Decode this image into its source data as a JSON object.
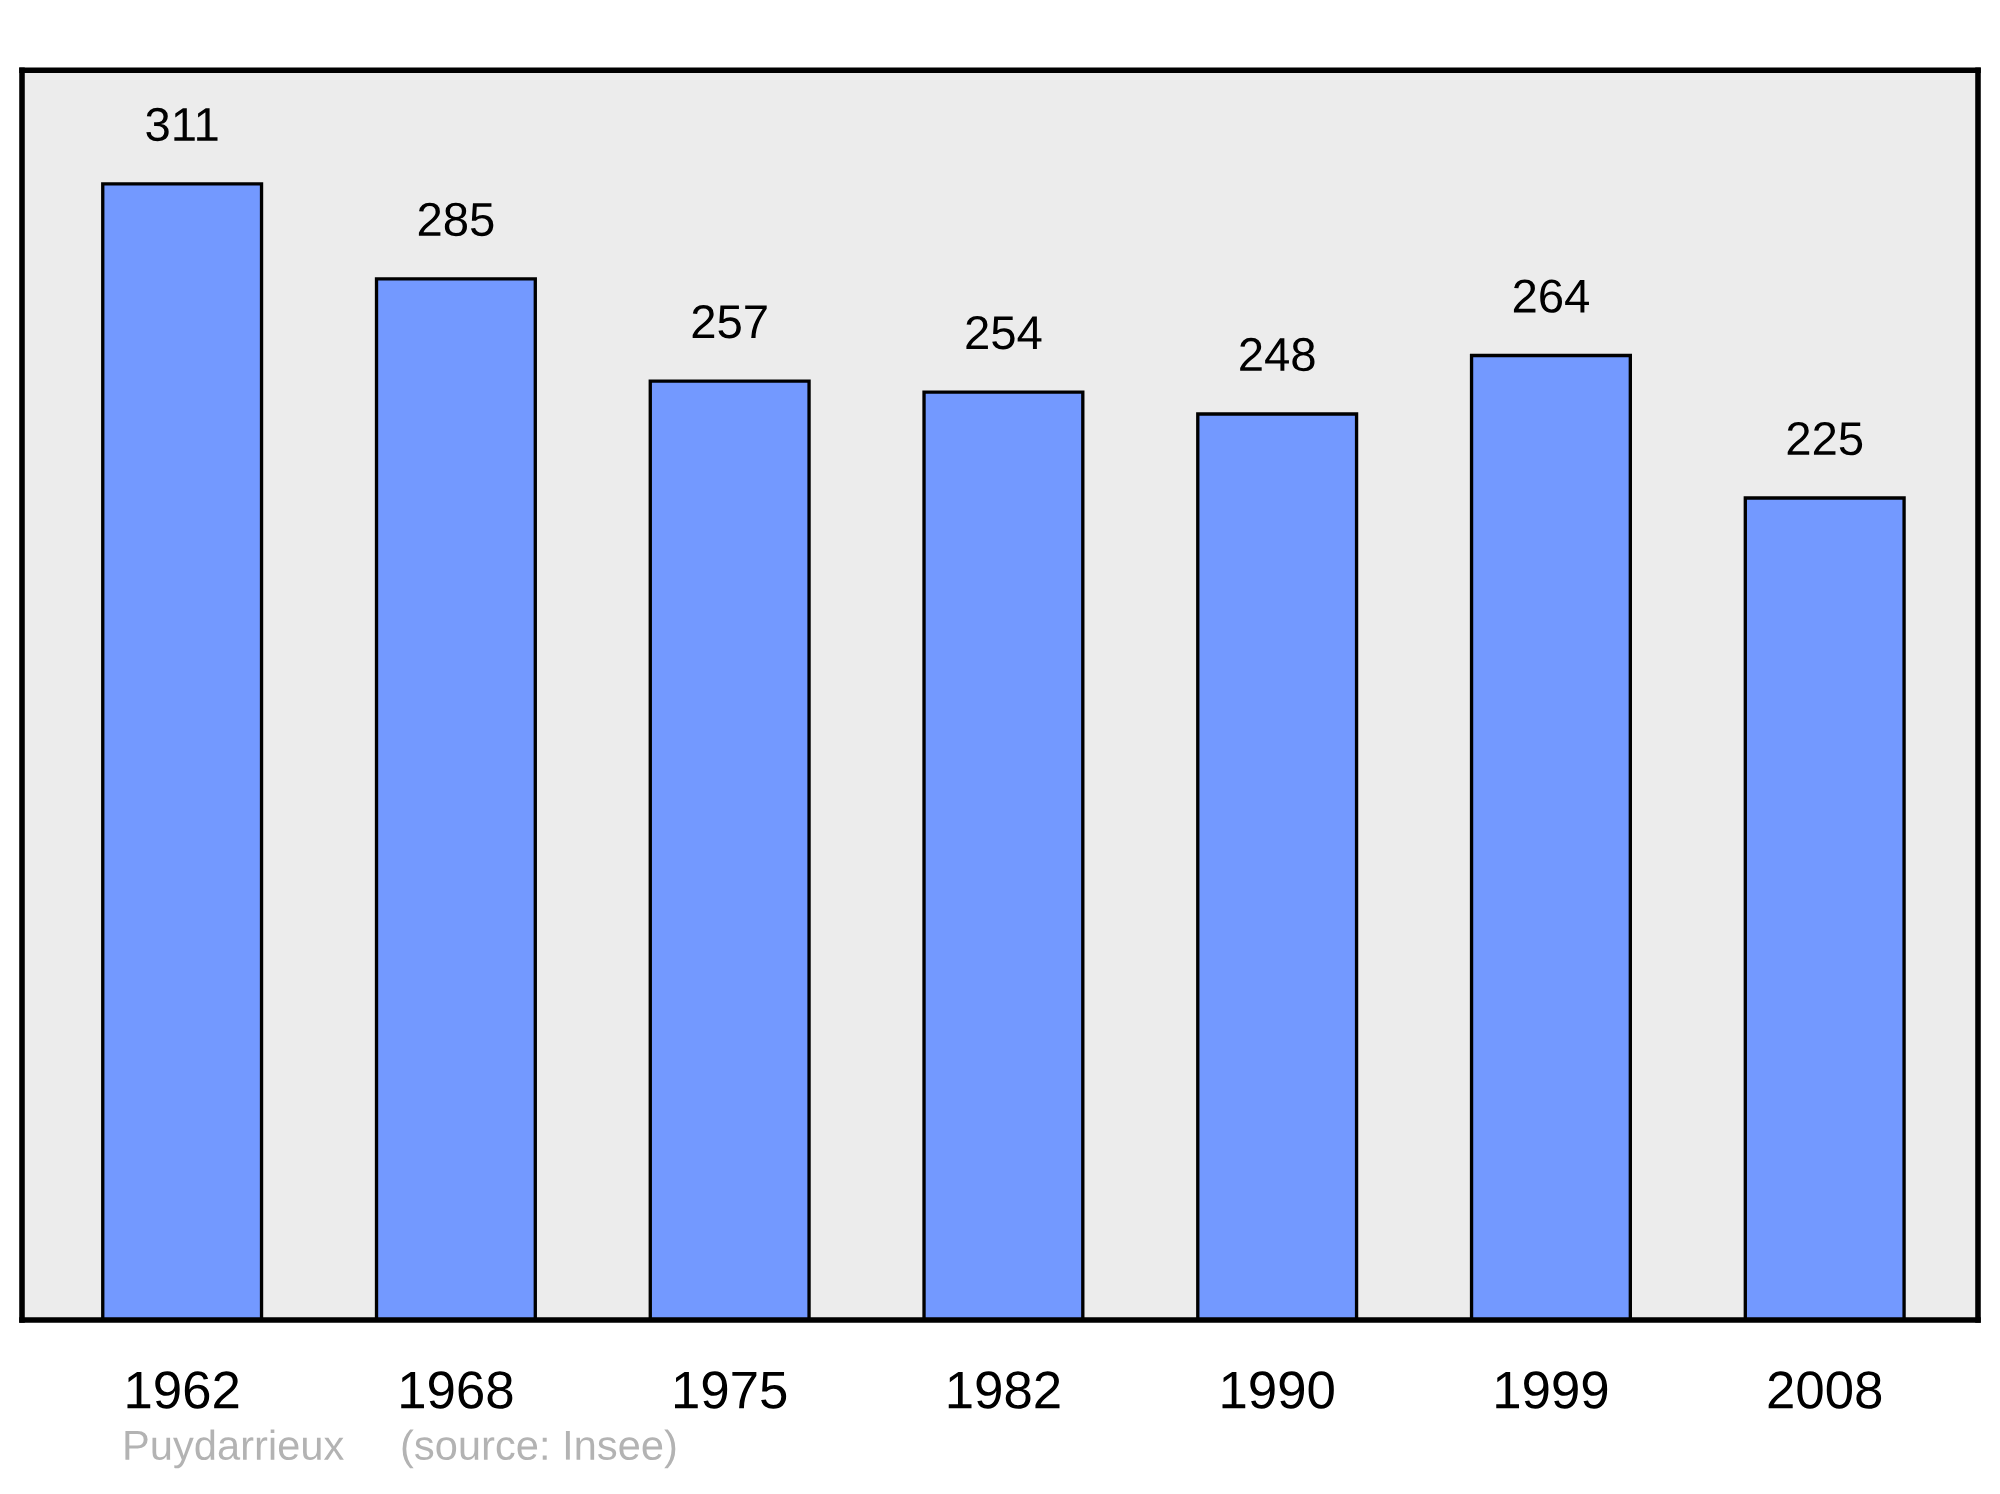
{
  "chart_data": {
    "type": "bar",
    "categories": [
      "1962",
      "1968",
      "1975",
      "1982",
      "1990",
      "1999",
      "2008"
    ],
    "values": [
      311,
      285,
      257,
      254,
      248,
      264,
      225
    ],
    "color": "#7399ff",
    "data_labels": true,
    "grid": false,
    "legend": false,
    "tick_labels": "x",
    "annotations": [
      "Puydarrieux",
      "(source: Insee)"
    ]
  }
}
